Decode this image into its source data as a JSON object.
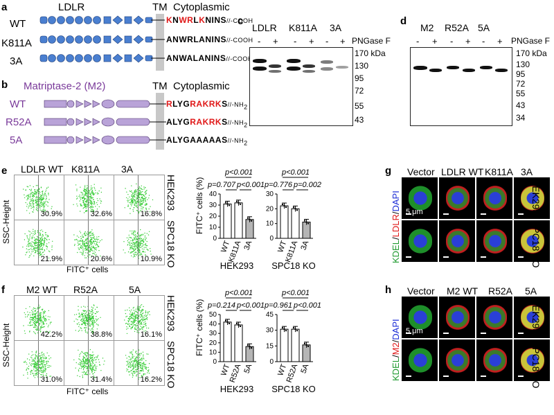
{
  "panels": {
    "a": "a",
    "b": "b",
    "c": "c",
    "d": "d",
    "e": "e",
    "f": "f",
    "g": "g",
    "h": "h"
  },
  "panel_a": {
    "head_ldlr": "LDLR",
    "head_tm": "TM",
    "head_cyto": "Cytoplasmic",
    "rows": [
      {
        "label": "WT",
        "seq_red1": "K",
        "seq_1": "N",
        "seq_red2": "W",
        "seq_2": "",
        "seq_red3": "R",
        "seq_3": "L",
        "seq_red4": "K",
        "seq_4": "NINS",
        "tail": "//-COOH",
        "full": "KNWRLKNINS"
      },
      {
        "label": "K811A",
        "full": "ANWRLANINS",
        "tail": "//-COOH"
      },
      {
        "label": "3A",
        "full": "ANWALANINS",
        "tail": "//-COOH"
      }
    ]
  },
  "panel_b": {
    "head_m2": "Matriptase-2 (M2)",
    "head_tm": "TM",
    "head_cyto": "Cytoplasmic",
    "rows": [
      {
        "label": "WT",
        "tail": "//-NH",
        "sub": "2"
      },
      {
        "label": "R52A",
        "tail": "//-NH",
        "sub": "2"
      },
      {
        "label": "5A",
        "tail": "//-NH",
        "sub": "2"
      }
    ],
    "seq_wt_a": "R",
    "seq_wt_b": "LYG",
    "seq_wt_c": "RA",
    "seq_wt_d": "KRK",
    "seq_wt_e": "S",
    "seq_r52_a": "ALYG",
    "seq_r52_b": "RA",
    "seq_r52_c": "KRK",
    "seq_r52_d": "S",
    "seq_5a": "ALYGAAAAAS"
  },
  "panel_c": {
    "lanes": [
      "LDLR",
      "K811A",
      "3A"
    ],
    "pngase_label": "PNGase F",
    "signs": [
      "-",
      "+",
      "-",
      "+",
      "-",
      "+"
    ],
    "markers": [
      "170 kDa",
      "130",
      "95",
      "72",
      "55",
      "43"
    ]
  },
  "panel_d": {
    "lanes": [
      "M2",
      "R52A",
      "5A"
    ],
    "pngase_label": "PNGase F",
    "signs": [
      "-",
      "+",
      "-",
      "+",
      "-",
      "+"
    ],
    "markers": [
      "170 kDa",
      "130",
      "95",
      "72",
      "55",
      "43",
      "34"
    ]
  },
  "panel_e": {
    "cols": [
      "LDLR WT",
      "K811A",
      "3A"
    ],
    "row_labels": [
      "HEK293",
      "SPC18 KO"
    ],
    "pct_top": [
      "30.9%",
      "32.6%",
      "16.8%"
    ],
    "pct_bottom": [
      "21.9%",
      "20.6%",
      "10.9%"
    ],
    "ylabel": "SSC-Height",
    "xlabel": "FITC⁺ cells",
    "bar_ylabel": "FITC⁺ cells (%)",
    "groups": [
      {
        "name": "HEK293",
        "cats": [
          "WT",
          "K811A",
          "3A"
        ],
        "values": [
          31,
          32,
          17
        ],
        "ylim": [
          0,
          40
        ],
        "ticks": [
          "0",
          "10",
          "20",
          "30",
          "40"
        ],
        "p_top": "p<0.001",
        "p_left": "p=0.707",
        "p_right": "p<0.001"
      },
      {
        "name": "SPC18 KO",
        "cats": [
          "WT",
          "K811A",
          "3A"
        ],
        "values": [
          22,
          20,
          11
        ],
        "ylim": [
          0,
          30
        ],
        "ticks": [
          "0",
          "10",
          "20",
          "30"
        ],
        "p_top": "p<0.001",
        "p_left": "p=0.776",
        "p_right": "p=0.002"
      }
    ]
  },
  "panel_f": {
    "cols": [
      "M2 WT",
      "R52A",
      "5A"
    ],
    "row_labels": [
      "HEK293",
      "SPC18 KO"
    ],
    "pct_top": [
      "42.2%",
      "38.8%",
      "16.1%"
    ],
    "pct_bottom": [
      "31.0%",
      "31.4%",
      "16.2%"
    ],
    "ylabel": "SSC-Height",
    "xlabel": "FITC⁺ cells",
    "bar_ylabel": "FITC⁺ cells (%)",
    "groups": [
      {
        "name": "HEK293",
        "cats": [
          "WT",
          "R52A",
          "5A"
        ],
        "values": [
          42,
          39,
          16
        ],
        "ylim": [
          0,
          50
        ],
        "ticks": [
          "0",
          "10",
          "20",
          "30",
          "40",
          "50"
        ],
        "p_top": "p<0.001",
        "p_left": "p=0.214",
        "p_right": "p<0.001"
      },
      {
        "name": "SPC18 KO",
        "cats": [
          "WT",
          "R52A",
          "5A"
        ],
        "values": [
          31,
          31,
          16
        ],
        "ylim": [
          0,
          45
        ],
        "ticks": [
          "0",
          "15",
          "30",
          "45"
        ],
        "p_top": "p<0.001",
        "p_left": "p=0.961",
        "p_right": "p<0.001"
      }
    ]
  },
  "panel_g": {
    "cols": [
      "Vector",
      "LDLR WT",
      "K811A",
      "3A"
    ],
    "row_labels": [
      "HEK293",
      "SPC18 KO"
    ],
    "stain_kdel": "KDEL",
    "stain_sep": "/",
    "stain_mid": "LDLR",
    "stain_dapi": "DAPI",
    "scale": "5 μm"
  },
  "panel_h": {
    "cols": [
      "Vector",
      "M2 WT",
      "R52A",
      "5A"
    ],
    "row_labels": [
      "HEK293",
      "SPC18 KO"
    ],
    "stain_kdel": "KDEL",
    "stain_sep": "/",
    "stain_mid": "M2",
    "stain_dapi": "DAPI",
    "scale": "5 μm"
  },
  "colors": {
    "red": "#e01818",
    "domain_blue": "#4a7fd0",
    "domain_purple": "#b9a3d8",
    "tm_gray": "#c8c8c8",
    "flow_green": "#33cc33"
  }
}
